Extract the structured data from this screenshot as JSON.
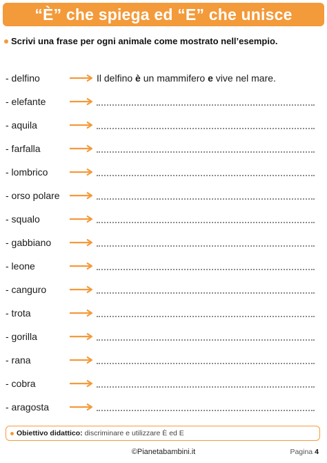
{
  "header": {
    "title": "“È” che spiega ed “E” che unisce"
  },
  "instruction": {
    "text": "Scrivi una frase per ogni animale come mostrato nell’esempio."
  },
  "example": {
    "pre": "Il delfino ",
    "b1": "è",
    "mid": " un mammifero ",
    "b2": "e",
    "post": " vive nel mare."
  },
  "animals": [
    "- delfino",
    "- elefante",
    "- aquila",
    "- farfalla",
    "- lombrico",
    "- orso polare",
    "- squalo",
    "- gabbiano",
    "- leone",
    "- canguro",
    "- trota",
    "- gorilla",
    "- rana",
    "- cobra",
    "- aragosta"
  ],
  "footer": {
    "goal_label": "Obiettivo didattico:",
    "goal_text": "discriminare e utilizzare È ed E",
    "site": "©Pianetabambini.it",
    "page_label": "Pagina",
    "page_number": "4"
  },
  "colors": {
    "accent": "#f39a3a",
    "text": "#1a1a1a"
  }
}
